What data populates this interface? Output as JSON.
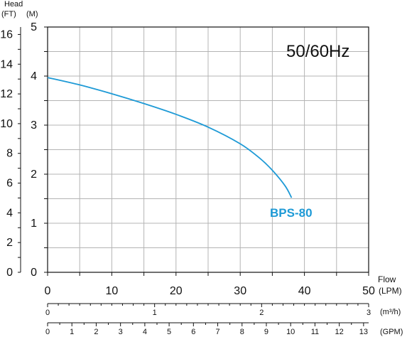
{
  "chart_data": {
    "type": "line",
    "annotation": "50/60Hz",
    "head_label": "Head",
    "unit_ft": "(FT)",
    "unit_m": "(M)",
    "flow_label": "Flow",
    "unit_lpm": "(LPM)",
    "unit_m3h": "(m³/h)",
    "unit_gpm": "(GPM)",
    "x_lpm_ticks": [
      "0",
      "10",
      "20",
      "30",
      "40",
      "50"
    ],
    "x_m3h_ticks": [
      "0",
      "1",
      "2",
      "3"
    ],
    "x_gpm_ticks": [
      "0",
      "1",
      "2",
      "3",
      "4",
      "5",
      "6",
      "7",
      "8",
      "9",
      "10",
      "11",
      "12",
      "13"
    ],
    "y_m_ticks": [
      "0",
      "1",
      "2",
      "3",
      "4",
      "5"
    ],
    "y_ft_ticks": [
      "0",
      "2",
      "4",
      "6",
      "8",
      "10",
      "12",
      "14",
      "16"
    ],
    "xlim": [
      0,
      50
    ],
    "ylim": [
      0,
      5
    ],
    "grid": true,
    "series": [
      {
        "name": "BPS-80",
        "color": "#1e9ad6",
        "x": [
          0,
          5,
          10,
          15,
          20,
          25,
          30,
          33,
          35,
          37,
          38
        ],
        "y": [
          3.97,
          3.82,
          3.64,
          3.44,
          3.22,
          2.96,
          2.62,
          2.33,
          2.08,
          1.76,
          1.52
        ]
      }
    ]
  }
}
